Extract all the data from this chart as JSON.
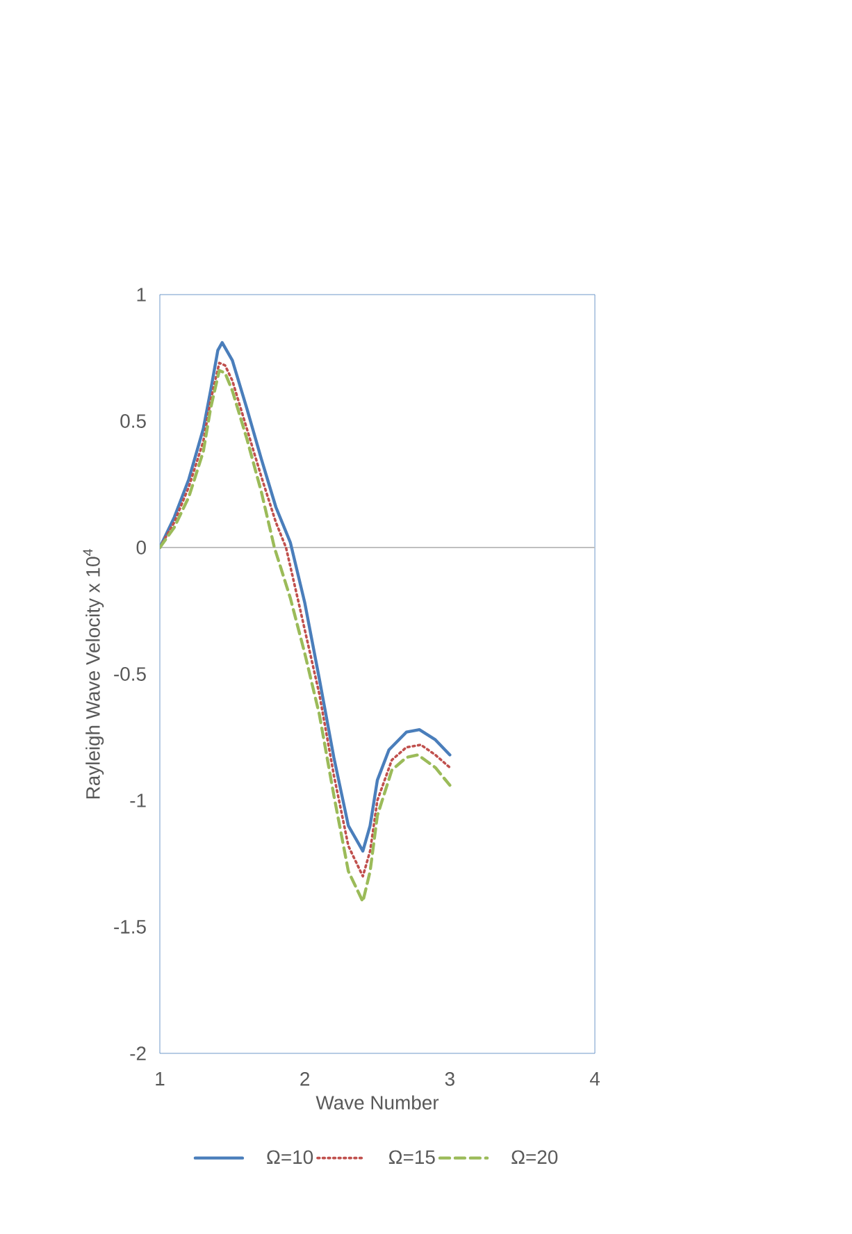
{
  "chart_data": {
    "type": "line",
    "xlabel": "Wave Number",
    "ylabel": "Rayleigh Wave Velocity x 10$^{4}$",
    "xlim": [
      1,
      4
    ],
    "xticks": [
      1,
      2,
      3,
      4
    ],
    "ylim": [
      -2,
      1
    ],
    "yticks": [
      -2,
      -1.5,
      -1,
      -0.5,
      0,
      0.5,
      1
    ],
    "grid": false,
    "legend": "bottom",
    "marker": "none",
    "ref_lines": [
      {
        "axis": "y",
        "value": 0,
        "color": "#bfbfbf"
      }
    ],
    "series": [
      {
        "name": "Ω=10",
        "color": "#4a7ebb",
        "line_style": "solid",
        "x": [
          1,
          1.1,
          1.2,
          1.3,
          1.35,
          1.4,
          1.43,
          1.5,
          1.6,
          1.7,
          1.8,
          1.9,
          2.0,
          2.1,
          2.2,
          2.3,
          2.4,
          2.45,
          2.5,
          2.58,
          2.7,
          2.79,
          2.9,
          3.0
        ],
        "values": [
          0,
          0.12,
          0.27,
          0.47,
          0.62,
          0.78,
          0.81,
          0.74,
          0.55,
          0.35,
          0.16,
          0.02,
          -0.22,
          -0.52,
          -0.83,
          -1.1,
          -1.2,
          -1.1,
          -0.92,
          -0.8,
          -0.73,
          -0.72,
          -0.76,
          -0.82
        ]
      },
      {
        "name": "Ω=15",
        "color": "#c0504d",
        "line_style": "dotted",
        "x": [
          1,
          1.1,
          1.2,
          1.3,
          1.35,
          1.41,
          1.45,
          1.5,
          1.6,
          1.7,
          1.8,
          1.87,
          1.95,
          2.1,
          2.2,
          2.3,
          2.4,
          2.45,
          2.5,
          2.6,
          2.7,
          2.8,
          2.9,
          3.0
        ],
        "values": [
          0,
          0.1,
          0.24,
          0.42,
          0.58,
          0.73,
          0.72,
          0.66,
          0.47,
          0.28,
          0.1,
          0,
          -0.2,
          -0.58,
          -0.9,
          -1.18,
          -1.3,
          -1.2,
          -1.0,
          -0.84,
          -0.79,
          -0.78,
          -0.82,
          -0.87
        ]
      },
      {
        "name": "Ω=20",
        "color": "#9bbb59",
        "line_style": "dashed",
        "x": [
          1,
          1.1,
          1.2,
          1.3,
          1.35,
          1.41,
          1.45,
          1.5,
          1.6,
          1.7,
          1.79,
          1.9,
          2.0,
          2.1,
          2.2,
          2.3,
          2.4,
          2.45,
          2.5,
          2.6,
          2.7,
          2.78,
          2.9,
          3.0
        ],
        "values": [
          0,
          0.08,
          0.2,
          0.38,
          0.55,
          0.7,
          0.69,
          0.62,
          0.43,
          0.22,
          0,
          -0.2,
          -0.42,
          -0.66,
          -0.98,
          -1.28,
          -1.4,
          -1.28,
          -1.06,
          -0.88,
          -0.83,
          -0.82,
          -0.87,
          -0.94
        ]
      }
    ]
  }
}
